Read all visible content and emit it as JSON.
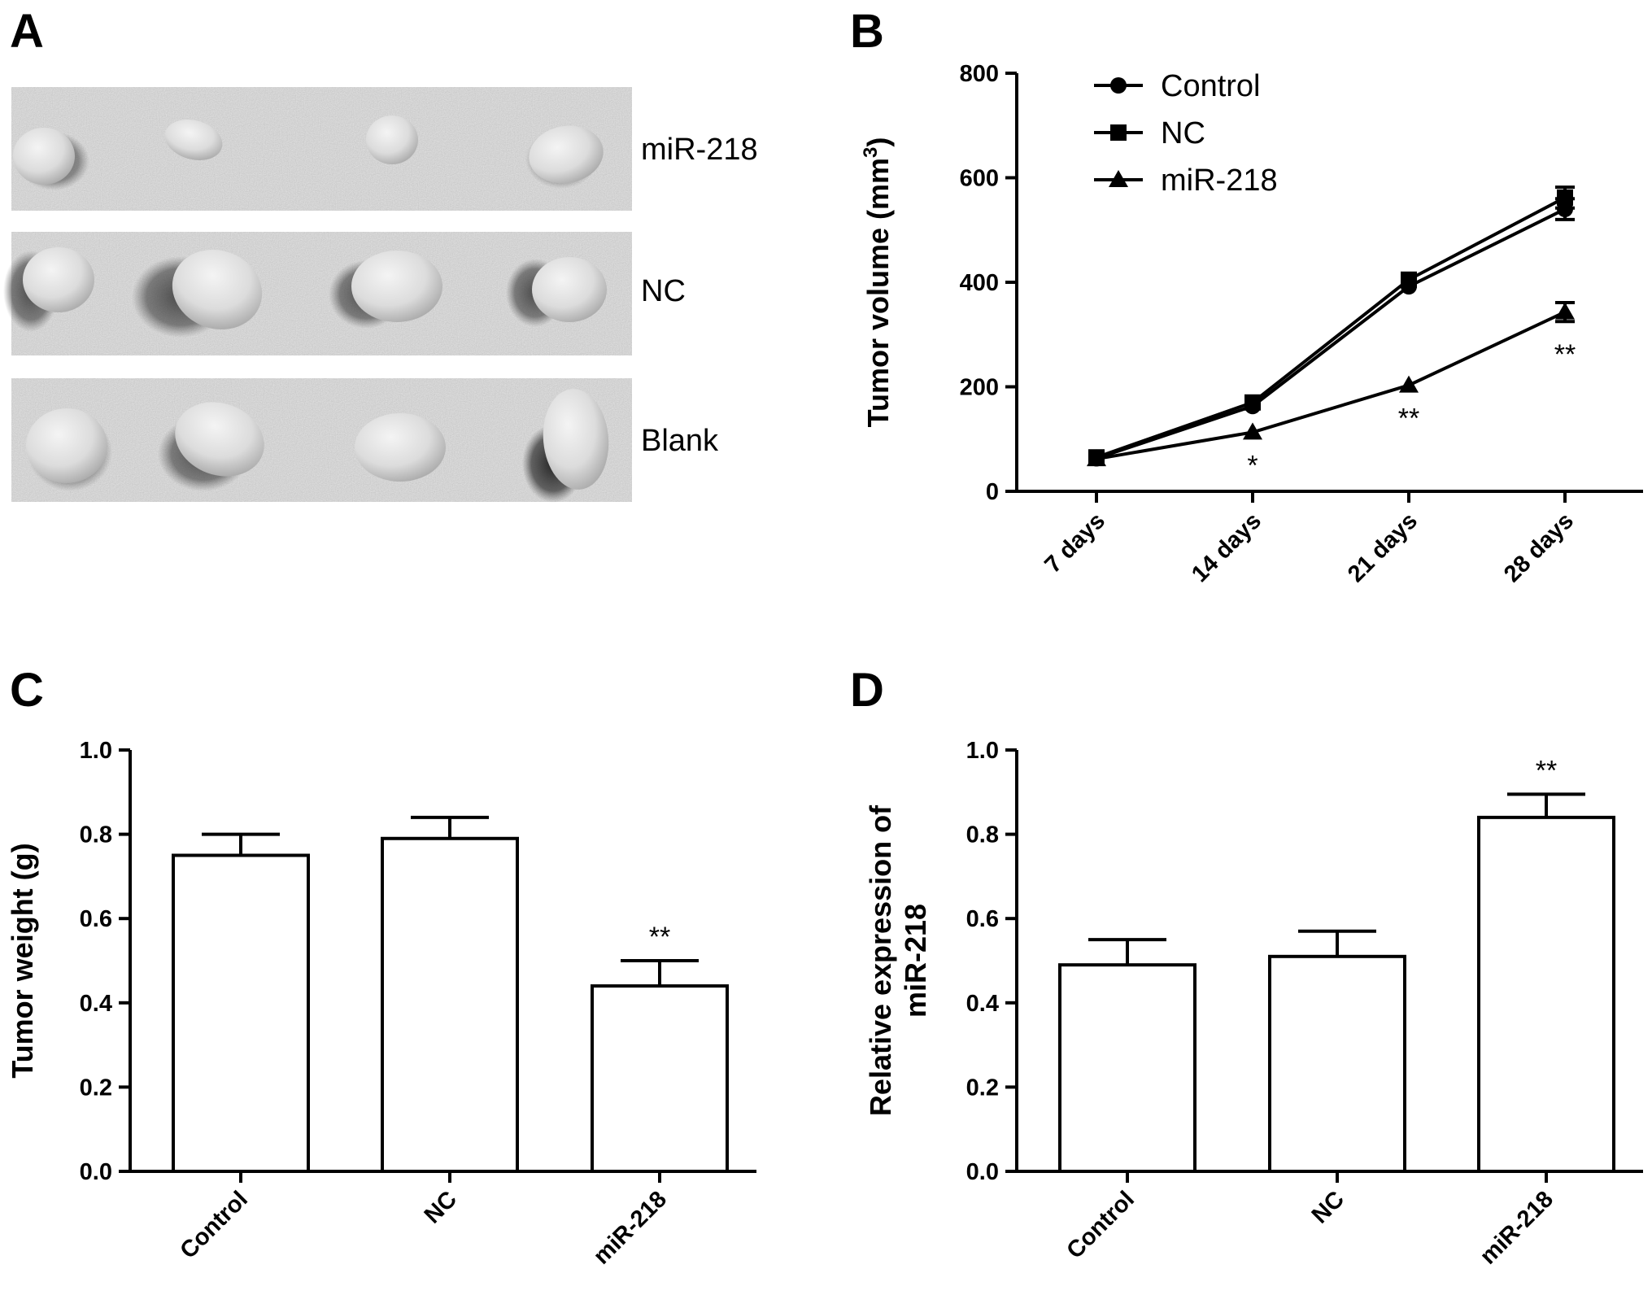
{
  "panels": {
    "A": {
      "letter": "A",
      "rows": [
        {
          "label": "miR-218"
        },
        {
          "label": "NC"
        },
        {
          "label": "Blank"
        }
      ]
    },
    "B": {
      "letter": "B"
    },
    "C": {
      "letter": "C"
    },
    "D": {
      "letter": "D"
    }
  },
  "chart_data": [
    {
      "panel": "B",
      "type": "line",
      "x": [
        "7 days",
        "14 days",
        "21 days",
        "28 days"
      ],
      "ylabel": "Tumor volume (mm",
      "ylabel_sup": "3",
      "ylabel_close": ")",
      "ylim": [
        0,
        800
      ],
      "yticks": [
        0,
        200,
        400,
        600,
        800
      ],
      "legend": "top-left",
      "series": [
        {
          "name": "Control",
          "marker": "circle",
          "values": [
            63,
            163,
            392,
            540
          ],
          "errors": [
            0,
            0,
            0,
            20
          ]
        },
        {
          "name": "NC",
          "marker": "square",
          "values": [
            65,
            170,
            405,
            562
          ],
          "errors": [
            0,
            0,
            0,
            20
          ]
        },
        {
          "name": "miR-218",
          "marker": "triangle",
          "values": [
            62,
            113,
            203,
            343
          ],
          "errors": [
            0,
            0,
            0,
            18
          ]
        }
      ],
      "annotations": [
        {
          "x": "14 days",
          "text": "*"
        },
        {
          "x": "21 days",
          "text": "**"
        },
        {
          "x": "28 days",
          "text": "**"
        }
      ]
    },
    {
      "panel": "C",
      "type": "bar",
      "categories": [
        "Control",
        "NC",
        "miR-218"
      ],
      "values": [
        0.75,
        0.79,
        0.44
      ],
      "errors": [
        0.05,
        0.05,
        0.06
      ],
      "ylabel": "Tumor weight (g)",
      "ylim": [
        0,
        1.0
      ],
      "yticks": [
        "0.0",
        "0.2",
        "0.4",
        "0.6",
        "0.8",
        "1.0"
      ],
      "annotations": [
        {
          "category": "miR-218",
          "text": "**"
        }
      ]
    },
    {
      "panel": "D",
      "type": "bar",
      "categories": [
        "Control",
        "NC",
        "miR-218"
      ],
      "values": [
        0.49,
        0.51,
        0.84
      ],
      "errors": [
        0.06,
        0.06,
        0.055
      ],
      "ylabel_line1": "Relative expression of",
      "ylabel_line2": "miR-218",
      "ylim": [
        0,
        1.0
      ],
      "yticks": [
        "0.0",
        "0.2",
        "0.4",
        "0.6",
        "0.8",
        "1.0"
      ],
      "annotations": [
        {
          "category": "miR-218",
          "text": "**"
        }
      ]
    }
  ]
}
